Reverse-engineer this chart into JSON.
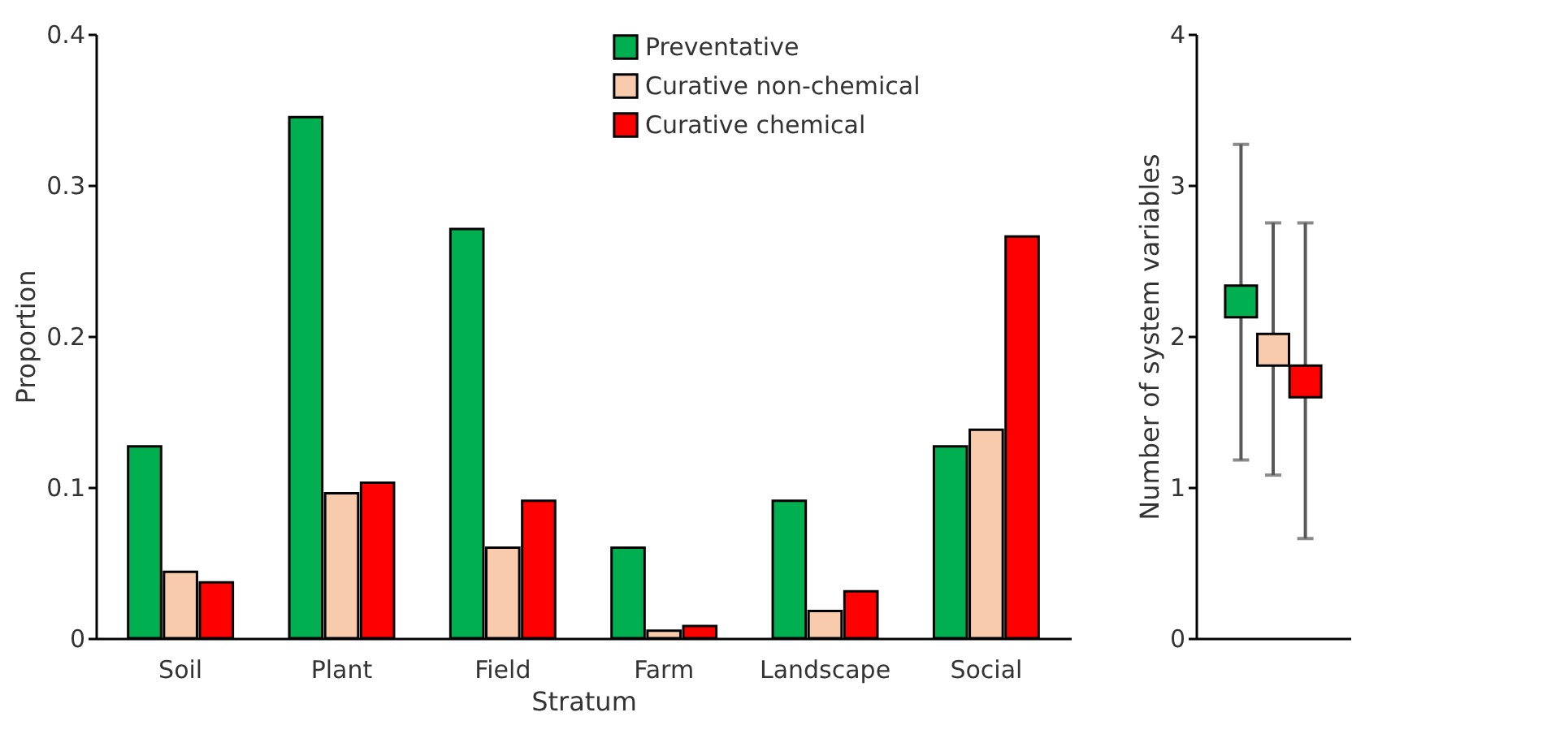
{
  "chart_data": [
    {
      "type": "bar",
      "xlabel": "Stratum",
      "ylabel": "Proportion",
      "categories": [
        "Soil",
        "Plant",
        "Field",
        "Farm",
        "Landscape",
        "Social"
      ],
      "series": [
        {
          "name": "Preventative",
          "color": "#00b050",
          "values": [
            0.127,
            0.345,
            0.271,
            0.06,
            0.091,
            0.127
          ]
        },
        {
          "name": "Curative non-chemical",
          "color": "#f8cbad",
          "values": [
            0.044,
            0.096,
            0.06,
            0.005,
            0.018,
            0.138
          ]
        },
        {
          "name": "Curative chemical",
          "color": "#ff0000",
          "values": [
            0.037,
            0.103,
            0.091,
            0.008,
            0.031,
            0.266
          ]
        }
      ],
      "ylim": [
        0,
        0.4
      ],
      "yticks": [
        0,
        0.1,
        0.2,
        0.3,
        0.4
      ],
      "grid": false,
      "legend": "top right"
    },
    {
      "type": "scatter",
      "ylabel": "Number of system variables",
      "categories": [
        null,
        null,
        null
      ],
      "values": [
        2.23,
        1.91,
        1.7
      ],
      "colors": [
        "#00b050",
        "#f8cbad",
        "#ff0000"
      ],
      "errors": [
        [
          1.18,
          3.27
        ],
        [
          1.08,
          2.75
        ],
        [
          0.66,
          2.75
        ]
      ],
      "marker": "square",
      "ylim": [
        0,
        4
      ],
      "yticks": [
        0,
        1,
        2,
        3,
        4
      ],
      "grid": false,
      "tick_labels": "y"
    }
  ]
}
